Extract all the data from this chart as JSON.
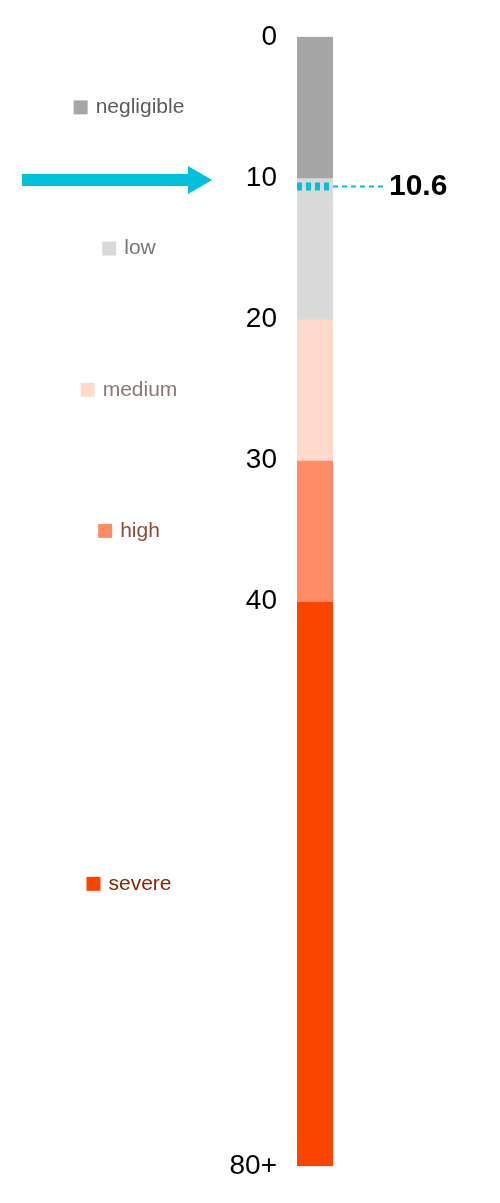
{
  "chart_data": {
    "type": "bar",
    "stacked": true,
    "categories": [
      null
    ],
    "series": [
      {
        "name": "negligible",
        "color": "#a6a6a6",
        "values": [
          10
        ]
      },
      {
        "name": "low",
        "color": "#d9d9d9",
        "values": [
          10
        ]
      },
      {
        "name": "medium",
        "color": "#ffd9cc",
        "values": [
          10
        ]
      },
      {
        "name": "high",
        "color": "#ff8c66",
        "values": [
          10
        ]
      },
      {
        "name": "severe",
        "color": "#f94500",
        "values": [
          40
        ]
      }
    ],
    "ylim": [
      80,
      0
    ],
    "yticks": [
      0,
      10,
      20,
      30,
      40,
      {
        "value": 80,
        "label": "80+"
      }
    ],
    "ref_lines": [
      {
        "axis": "y",
        "value": 10.6,
        "label": "10.6",
        "color": "#00c0dc",
        "line_style": "dashed"
      }
    ],
    "grid": false,
    "legend": "left",
    "tick_labels": "y"
  }
}
